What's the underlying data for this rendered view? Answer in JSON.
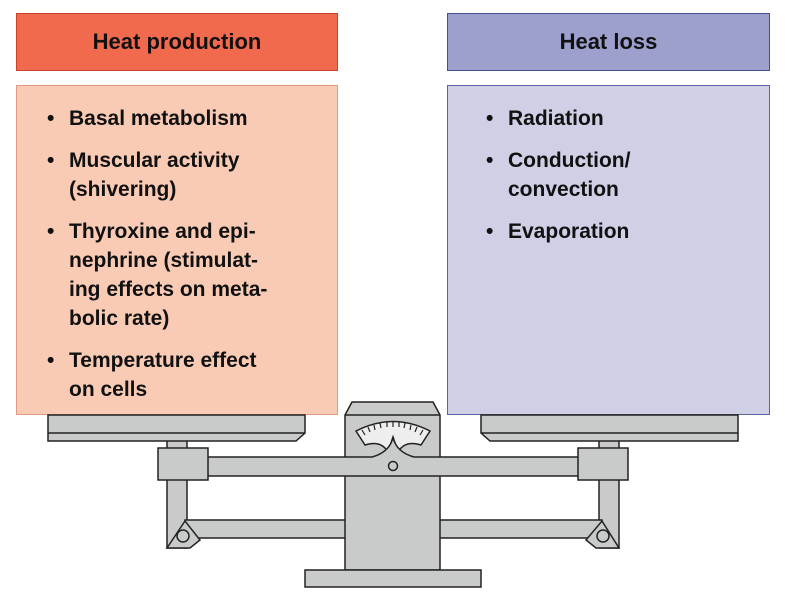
{
  "heat_production": {
    "title": "Heat production",
    "color": "#f26a4d",
    "items": [
      "Basal metabolism",
      "Muscular activity\n(shivering)",
      "Thyroxine and epi-\nnephrine (stimulat-\ning effects on meta-\nbolic rate)",
      "Temperature effect\non cells"
    ]
  },
  "heat_loss": {
    "title": "Heat loss",
    "color": "#9d9fcd",
    "items": [
      "Radiation",
      "Conduction/\nconvection",
      "Evaporation"
    ]
  },
  "scale": {
    "state": "balanced"
  }
}
